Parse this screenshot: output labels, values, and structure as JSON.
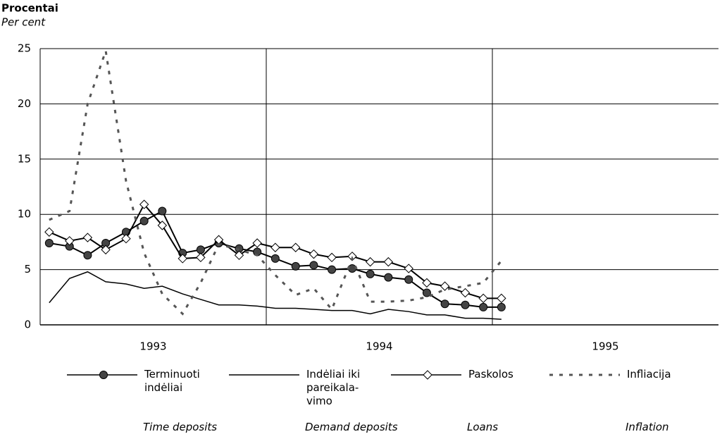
{
  "chart_data": {
    "type": "line",
    "ylabel": "Procentai",
    "ylabel_en": "Per cent",
    "x": [
      1993.04,
      1993.13,
      1993.21,
      1993.29,
      1993.38,
      1993.46,
      1993.54,
      1993.63,
      1993.71,
      1993.79,
      1993.88,
      1993.96,
      1994.04,
      1994.13,
      1994.21,
      1994.29,
      1994.38,
      1994.46,
      1994.54,
      1994.63,
      1994.71,
      1994.79,
      1994.88,
      1994.96,
      1995.04
    ],
    "xlim": [
      1993,
      1996
    ],
    "xticks": [
      {
        "value": 1993.5,
        "label": "1993"
      },
      {
        "value": 1994.5,
        "label": "1994"
      },
      {
        "value": 1995.5,
        "label": "1995"
      }
    ],
    "xgrid": [
      1994,
      1995
    ],
    "ylim": [
      0,
      25
    ],
    "yticks": [
      0,
      5,
      10,
      15,
      20,
      25
    ],
    "grid": true,
    "series": [
      {
        "name": "Terminuoti indėliai",
        "name_en": "Time deposits",
        "color": "#000000",
        "marker": "circle",
        "dash": false,
        "values": [
          7.4,
          7.1,
          6.3,
          7.4,
          8.4,
          9.4,
          10.3,
          6.5,
          6.8,
          7.4,
          6.9,
          6.6,
          6.0,
          5.3,
          5.4,
          5.0,
          5.1,
          4.6,
          4.3,
          4.1,
          2.9,
          1.9,
          1.8,
          1.6,
          1.6
        ]
      },
      {
        "name": "Indėliai iki pareikala-vimo",
        "name_en": "Demand  deposits",
        "color": "#000000",
        "marker": null,
        "dash": false,
        "values": [
          2.0,
          4.2,
          4.8,
          3.9,
          3.7,
          3.3,
          3.5,
          2.8,
          2.3,
          1.8,
          1.8,
          1.7,
          1.5,
          1.5,
          1.4,
          1.3,
          1.3,
          1.0,
          1.4,
          1.2,
          0.9,
          0.9,
          0.6,
          0.6,
          0.5
        ]
      },
      {
        "name": "Paskolos",
        "name_en": "Loans",
        "color": "#000000",
        "marker": "diamond",
        "dash": false,
        "values": [
          8.4,
          7.6,
          7.9,
          6.8,
          7.8,
          10.9,
          9.0,
          6.0,
          6.1,
          7.7,
          6.3,
          7.4,
          7.0,
          7.0,
          6.4,
          6.1,
          6.2,
          5.7,
          5.7,
          5.1,
          3.8,
          3.5,
          2.9,
          2.4,
          2.4
        ]
      },
      {
        "name": "Infliacija",
        "name_en": "Inflation",
        "color": "#555555",
        "marker": null,
        "dash": true,
        "values": [
          9.5,
          10.3,
          20.0,
          24.8,
          13.0,
          6.5,
          2.8,
          1.0,
          3.8,
          7.3,
          6.8,
          6.3,
          4.5,
          2.7,
          3.3,
          1.4,
          6.0,
          2.1,
          2.1,
          2.2,
          2.5,
          3.2,
          3.5,
          3.8,
          5.8
        ]
      }
    ]
  }
}
